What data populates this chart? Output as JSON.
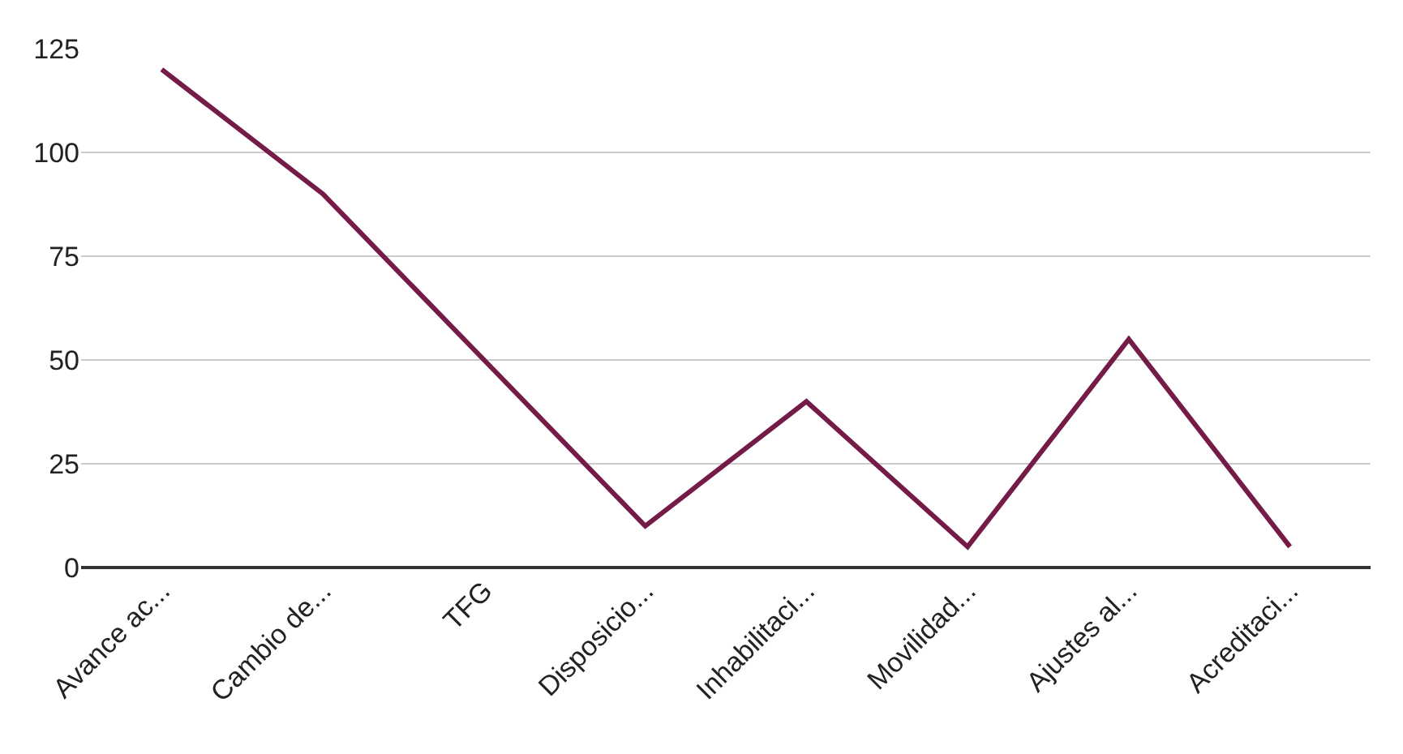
{
  "chart_data": {
    "type": "line",
    "categories": [
      "Avance ac...",
      "Cambio de...",
      "TFG",
      "Disposicio...",
      "Inhabilitaci...",
      "Movilidad...",
      "Ajustes al...",
      "Acreditaci..."
    ],
    "series": [
      {
        "color": "#741b47",
        "values": [
          120,
          90,
          50,
          10,
          40,
          5,
          55,
          5
        ]
      }
    ],
    "ylim": [
      0,
      125
    ],
    "yticks": [
      0,
      25,
      50,
      75,
      100,
      125
    ],
    "grid": "y",
    "legend": false,
    "marker": "none",
    "line_style": "solid"
  }
}
